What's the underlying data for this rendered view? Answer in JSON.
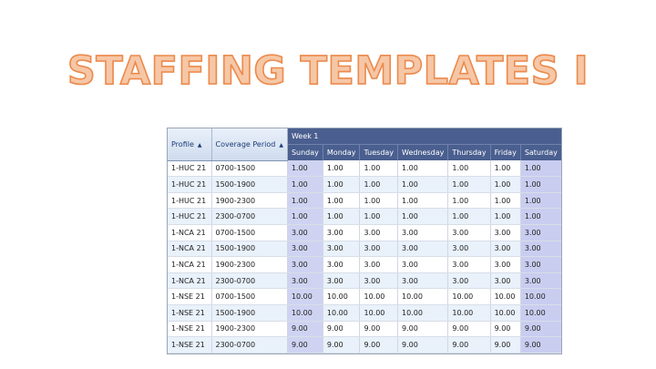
{
  "slide": {
    "title": "STAFFING TEMPLATES I"
  },
  "grid": {
    "headers": {
      "profile": "Profile",
      "coverage": "Coverage Period",
      "sort_indicator": "▲",
      "week": "Week 1",
      "days": [
        "Sunday",
        "Monday",
        "Tuesday",
        "Wednesday",
        "Thursday",
        "Friday",
        "Saturday"
      ]
    },
    "rows": [
      {
        "profile": "1-HUC 21",
        "coverage": "0700-1500",
        "values": [
          "1.00",
          "1.00",
          "1.00",
          "1.00",
          "1.00",
          "1.00",
          "1.00"
        ]
      },
      {
        "profile": "1-HUC 21",
        "coverage": "1500-1900",
        "values": [
          "1.00",
          "1.00",
          "1.00",
          "1.00",
          "1.00",
          "1.00",
          "1.00"
        ]
      },
      {
        "profile": "1-HUC 21",
        "coverage": "1900-2300",
        "values": [
          "1.00",
          "1.00",
          "1.00",
          "1.00",
          "1.00",
          "1.00",
          "1.00"
        ]
      },
      {
        "profile": "1-HUC 21",
        "coverage": "2300-0700",
        "values": [
          "1.00",
          "1.00",
          "1.00",
          "1.00",
          "1.00",
          "1.00",
          "1.00"
        ]
      },
      {
        "profile": "1-NCA 21",
        "coverage": "0700-1500",
        "values": [
          "3.00",
          "3.00",
          "3.00",
          "3.00",
          "3.00",
          "3.00",
          "3.00"
        ]
      },
      {
        "profile": "1-NCA 21",
        "coverage": "1500-1900",
        "values": [
          "3.00",
          "3.00",
          "3.00",
          "3.00",
          "3.00",
          "3.00",
          "3.00"
        ]
      },
      {
        "profile": "1-NCA 21",
        "coverage": "1900-2300",
        "values": [
          "3.00",
          "3.00",
          "3.00",
          "3.00",
          "3.00",
          "3.00",
          "3.00"
        ]
      },
      {
        "profile": "1-NCA 21",
        "coverage": "2300-0700",
        "values": [
          "3.00",
          "3.00",
          "3.00",
          "3.00",
          "3.00",
          "3.00",
          "3.00"
        ]
      },
      {
        "profile": "1-NSE 21",
        "coverage": "0700-1500",
        "values": [
          "10.00",
          "10.00",
          "10.00",
          "10.00",
          "10.00",
          "10.00",
          "10.00"
        ]
      },
      {
        "profile": "1-NSE 21",
        "coverage": "1500-1900",
        "values": [
          "10.00",
          "10.00",
          "10.00",
          "10.00",
          "10.00",
          "10.00",
          "10.00"
        ]
      },
      {
        "profile": "1-NSE 21",
        "coverage": "1900-2300",
        "values": [
          "9.00",
          "9.00",
          "9.00",
          "9.00",
          "9.00",
          "9.00",
          "9.00"
        ]
      },
      {
        "profile": "1-NSE 21",
        "coverage": "2300-0700",
        "values": [
          "9.00",
          "9.00",
          "9.00",
          "9.00",
          "9.00",
          "9.00",
          "9.00"
        ]
      }
    ]
  },
  "colors": {
    "title_fill": "#f6c7a6",
    "title_stroke": "#ec8a4c",
    "header_bar": "#4a5f8f",
    "weekend_column": "#c9cdf0",
    "alt_row": "#e9f1fb"
  }
}
